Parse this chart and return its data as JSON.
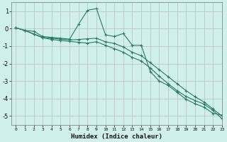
{
  "xlabel": "Humidex (Indice chaleur)",
  "xlim": [
    -0.5,
    23
  ],
  "ylim": [
    -5.5,
    1.5
  ],
  "yticks": [
    1,
    0,
    -1,
    -2,
    -3,
    -4,
    -5
  ],
  "xticks": [
    0,
    1,
    2,
    3,
    4,
    5,
    6,
    7,
    8,
    9,
    10,
    11,
    12,
    13,
    14,
    15,
    16,
    17,
    18,
    19,
    20,
    21,
    22,
    23
  ],
  "bg_color": "#d0f0ec",
  "grid_color": "#c0b8c0",
  "line_color": "#2a7a6a",
  "line1_x": [
    0,
    1,
    2,
    3,
    4,
    5,
    6,
    7,
    8,
    9,
    10,
    11,
    12,
    13,
    14,
    15,
    16,
    17,
    18,
    19,
    20,
    21,
    22,
    23
  ],
  "line1_y": [
    0.05,
    -0.1,
    -0.15,
    -0.45,
    -0.5,
    -0.55,
    -0.6,
    0.25,
    1.05,
    1.15,
    -0.35,
    -0.45,
    -0.28,
    -0.95,
    -0.95,
    -2.45,
    -3.0,
    -3.25,
    -3.65,
    -4.05,
    -4.3,
    -4.5,
    -4.85,
    -4.95
  ],
  "line2_x": [
    0,
    1,
    2,
    3,
    4,
    5,
    6,
    7,
    8,
    9,
    10,
    11,
    12,
    13,
    14,
    15,
    16,
    17,
    18,
    19,
    20,
    21,
    22,
    23
  ],
  "line2_y": [
    0.05,
    -0.1,
    -0.3,
    -0.5,
    -0.55,
    -0.6,
    -0.65,
    -0.62,
    -0.58,
    -0.55,
    -0.75,
    -0.85,
    -1.05,
    -1.35,
    -1.55,
    -1.95,
    -2.35,
    -2.75,
    -3.15,
    -3.55,
    -3.9,
    -4.2,
    -4.6,
    -5.0
  ],
  "line3_x": [
    0,
    1,
    2,
    3,
    4,
    5,
    6,
    7,
    8,
    9,
    10,
    11,
    12,
    13,
    14,
    15,
    16,
    17,
    18,
    19,
    20,
    21,
    22,
    23
  ],
  "line3_y": [
    0.05,
    -0.1,
    -0.32,
    -0.52,
    -0.62,
    -0.68,
    -0.73,
    -0.78,
    -0.83,
    -0.75,
    -0.95,
    -1.15,
    -1.35,
    -1.65,
    -1.85,
    -2.25,
    -2.72,
    -3.15,
    -3.55,
    -3.88,
    -4.12,
    -4.32,
    -4.68,
    -5.15
  ]
}
